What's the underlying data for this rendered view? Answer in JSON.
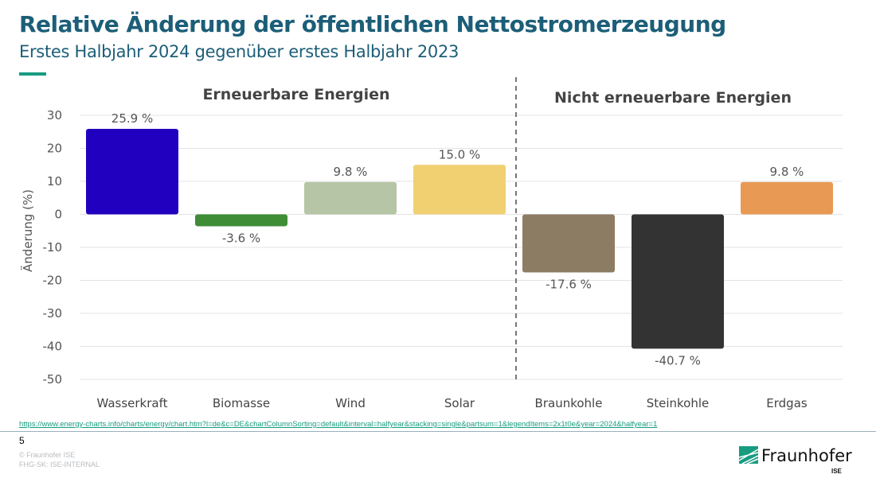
{
  "header": {
    "title": "Relative Änderung der öffentlichen Nettostromerzeugung",
    "subtitle": "Erstes Halbjahr 2024 gegenüber erstes Halbjahr 2023"
  },
  "chart_data": {
    "type": "bar",
    "categories": [
      "Wasserkraft",
      "Biomasse",
      "Wind",
      "Solar",
      "Braunkohle",
      "Steinkohle",
      "Erdgas"
    ],
    "values": [
      25.9,
      -3.6,
      9.8,
      15.0,
      -17.6,
      -40.7,
      9.8
    ],
    "data_labels": [
      "25.9 %",
      "-3.6 %",
      "9.8 %",
      "15.0 %",
      "-17.6 %",
      "-40.7 %",
      "9.8 %"
    ],
    "colors": [
      "#2200c0",
      "#3f8d36",
      "#b5c5a5",
      "#f1d072",
      "#8d7c64",
      "#333333",
      "#e89a55"
    ],
    "ylabel": "Änderung (%)",
    "ylim": [
      -50,
      30
    ],
    "yticks": [
      30,
      20,
      10,
      0,
      -10,
      -20,
      -30,
      -40,
      -50
    ],
    "grid": true,
    "groups": [
      {
        "label": "Erneuerbare Energien",
        "categories": [
          "Wasserkraft",
          "Biomasse",
          "Wind",
          "Solar"
        ]
      },
      {
        "label": "Nicht erneuerbare Energien",
        "categories": [
          "Braunkohle",
          "Steinkohle",
          "Erdgas"
        ]
      }
    ]
  },
  "footer": {
    "url": "https://www.energy-charts.info/charts/energy/chart.htm?l=de&c=DE&chartColumnSorting=default&interval=halfyear&stacking=single&partsum=1&legendItems=2x1t0e&year=2024&halfyear=1",
    "page_number": "5",
    "copyright": "© Fraunhofer ISE",
    "classification": "FHG-SK: ISE-INTERNAL",
    "logo_text": "Fraunhofer",
    "logo_sub": "ISE"
  },
  "accent_color": "#179c80"
}
